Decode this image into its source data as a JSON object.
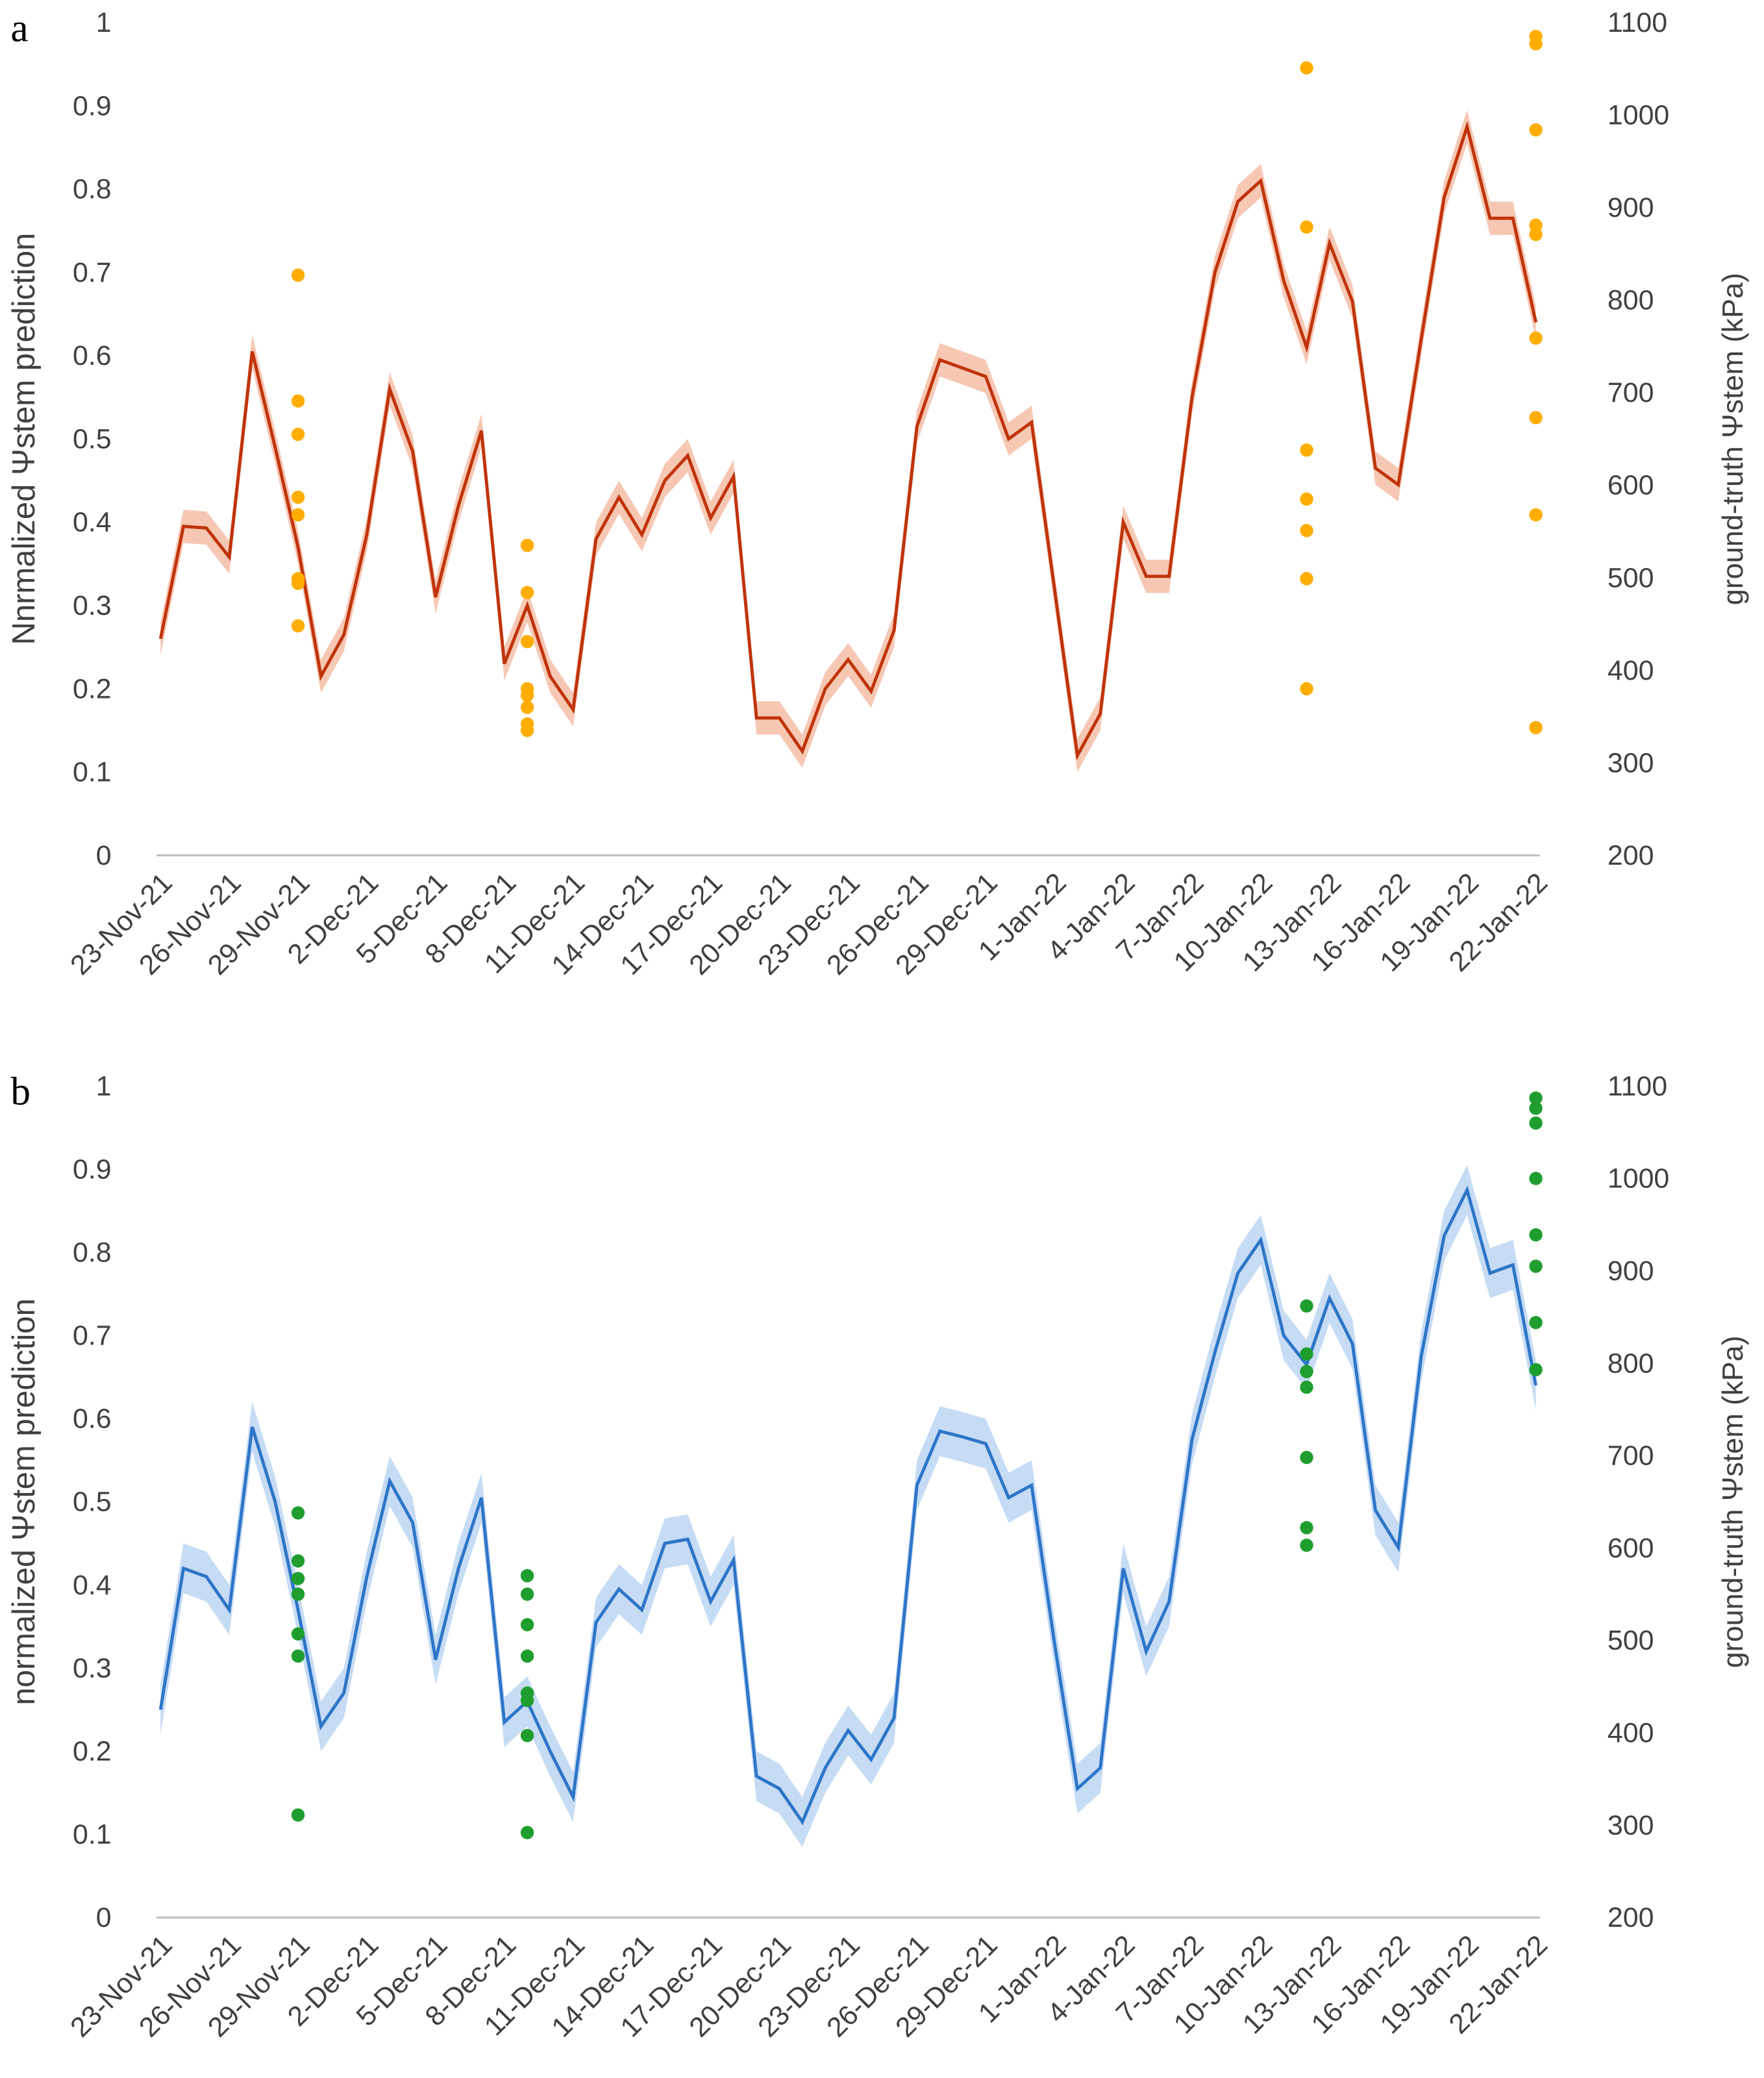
{
  "chart_data": [
    {
      "type": "line",
      "title": "a",
      "ylabel": "Nnrmalized Ψstem prediction",
      "y2label": "ground-truth Ψstem (kPa)",
      "categories": [
        "23-Nov-21",
        null,
        null,
        "26-Nov-21",
        null,
        null,
        "29-Nov-21",
        null,
        null,
        "2-Dec-21",
        null,
        null,
        "5-Dec-21",
        null,
        null,
        "8-Dec-21",
        null,
        null,
        "11-Dec-21",
        null,
        null,
        "14-Dec-21",
        null,
        null,
        "17-Dec-21",
        null,
        null,
        "20-Dec-21",
        null,
        null,
        "23-Dec-21",
        null,
        null,
        "26-Dec-21",
        null,
        null,
        "29-Dec-21",
        null,
        null,
        "1-Jan-22",
        null,
        null,
        "4-Jan-22",
        null,
        null,
        "7-Jan-22",
        null,
        null,
        "10-Jan-22",
        null,
        null,
        "13-Jan-22",
        null,
        null,
        "16-Jan-22",
        null,
        null,
        "19-Jan-22",
        null,
        null,
        "22-Jan-22"
      ],
      "values": [
        0.26,
        0.395,
        0.393,
        0.358,
        0.605,
        0.49,
        0.37,
        0.215,
        0.265,
        0.385,
        0.56,
        0.485,
        0.31,
        0.42,
        0.51,
        0.23,
        0.3,
        0.215,
        0.175,
        0.38,
        0.43,
        0.385,
        0.45,
        0.48,
        0.405,
        0.455,
        0.165,
        0.165,
        0.125,
        0.2,
        0.235,
        0.197,
        0.27,
        0.515,
        0.595,
        0.585,
        0.575,
        0.5,
        0.52,
        0.32,
        0.12,
        0.17,
        0.4,
        0.335,
        0.335,
        0.55,
        0.7,
        0.785,
        0.81,
        0.69,
        0.61,
        0.735,
        0.665,
        0.465,
        0.445,
        0.62,
        0.79,
        0.875,
        0.765,
        0.765,
        0.64
      ],
      "band": 0.02,
      "color": "#c0330a",
      "band_color": "#f6c8b4",
      "point_color": "#ffad00",
      "measured": [
        null,
        null,
        null,
        null,
        null,
        null,
        [
          827,
          691,
          655,
          587,
          568,
          499,
          494,
          448
        ],
        null,
        null,
        null,
        null,
        null,
        null,
        null,
        null,
        null,
        [
          535,
          484,
          431,
          380,
          373,
          360,
          342,
          335
        ],
        null,
        null,
        null,
        null,
        null,
        null,
        null,
        null,
        null,
        null,
        null,
        null,
        null,
        null,
        null,
        null,
        null,
        null,
        null,
        null,
        null,
        null,
        null,
        null,
        null,
        null,
        null,
        null,
        null,
        null,
        null,
        null,
        null,
        [
          1051,
          879,
          638,
          585,
          551,
          499,
          380
        ],
        null,
        null,
        null,
        null,
        null,
        null,
        null,
        null,
        null,
        [
          1085,
          1077,
          984,
          881,
          871,
          759,
          673,
          568,
          338
        ]
      ],
      "ylim": [
        0,
        1
      ],
      "yticks": [
        0,
        0.1,
        0.2,
        0.3,
        0.4,
        0.5,
        0.6,
        0.7,
        0.8,
        0.9,
        1
      ],
      "y2lim": [
        200,
        1100
      ],
      "y2ticks": [
        200,
        300,
        400,
        500,
        600,
        700,
        800,
        900,
        1000,
        1100
      ]
    },
    {
      "type": "line",
      "title": "b",
      "ylabel": "normalized Ψstem prediction",
      "y2label": "ground-truth Ψstem (kPa)",
      "categories": [
        "23-Nov-21",
        null,
        null,
        "26-Nov-21",
        null,
        null,
        "29-Nov-21",
        null,
        null,
        "2-Dec-21",
        null,
        null,
        "5-Dec-21",
        null,
        null,
        "8-Dec-21",
        null,
        null,
        "11-Dec-21",
        null,
        null,
        "14-Dec-21",
        null,
        null,
        "17-Dec-21",
        null,
        null,
        "20-Dec-21",
        null,
        null,
        "23-Dec-21",
        null,
        null,
        "26-Dec-21",
        null,
        null,
        "29-Dec-21",
        null,
        null,
        "1-Jan-22",
        null,
        null,
        "4-Jan-22",
        null,
        null,
        "7-Jan-22",
        null,
        null,
        "10-Jan-22",
        null,
        null,
        "13-Jan-22",
        null,
        null,
        "16-Jan-22",
        null,
        null,
        "19-Jan-22",
        null,
        null,
        "22-Jan-22"
      ],
      "values": [
        0.25,
        0.42,
        0.41,
        0.37,
        0.59,
        0.5,
        0.37,
        0.23,
        0.27,
        0.41,
        0.525,
        0.475,
        0.31,
        0.42,
        0.505,
        0.235,
        0.26,
        0.2,
        0.145,
        0.355,
        0.395,
        0.37,
        0.45,
        0.455,
        0.38,
        0.43,
        0.17,
        0.155,
        0.115,
        0.18,
        0.225,
        0.19,
        0.24,
        0.52,
        0.585,
        0.578,
        0.57,
        0.505,
        0.52,
        0.33,
        0.155,
        0.18,
        0.42,
        0.32,
        0.38,
        0.575,
        0.68,
        0.775,
        0.815,
        0.7,
        0.665,
        0.745,
        0.69,
        0.49,
        0.445,
        0.675,
        0.82,
        0.875,
        0.775,
        0.785,
        0.64
      ],
      "band": 0.03,
      "color": "#2e75c8",
      "band_color": "#c6dcf4",
      "point_color": "#1f9e2f",
      "measured": [
        null,
        null,
        null,
        null,
        null,
        null,
        [
          638,
          586,
          567,
          550,
          507,
          483,
          311
        ],
        null,
        null,
        null,
        null,
        null,
        null,
        null,
        null,
        null,
        [
          570,
          550,
          517,
          483,
          443,
          435,
          397,
          292
        ],
        null,
        null,
        null,
        null,
        null,
        null,
        null,
        null,
        null,
        null,
        null,
        null,
        null,
        null,
        null,
        null,
        null,
        null,
        null,
        null,
        null,
        null,
        null,
        null,
        null,
        null,
        null,
        null,
        null,
        null,
        null,
        null,
        null,
        [
          862,
          810,
          791,
          774,
          698,
          622,
          603
        ],
        null,
        null,
        null,
        null,
        null,
        null,
        null,
        null,
        null,
        [
          1087,
          1076,
          1060,
          1000,
          939,
          905,
          844,
          793
        ]
      ],
      "ylim": [
        0,
        1
      ],
      "yticks": [
        0,
        0.1,
        0.2,
        0.3,
        0.4,
        0.5,
        0.6,
        0.7,
        0.8,
        0.9,
        1
      ],
      "y2lim": [
        200,
        1100
      ],
      "y2ticks": [
        200,
        300,
        400,
        500,
        600,
        700,
        800,
        900,
        1000,
        1100
      ]
    }
  ]
}
